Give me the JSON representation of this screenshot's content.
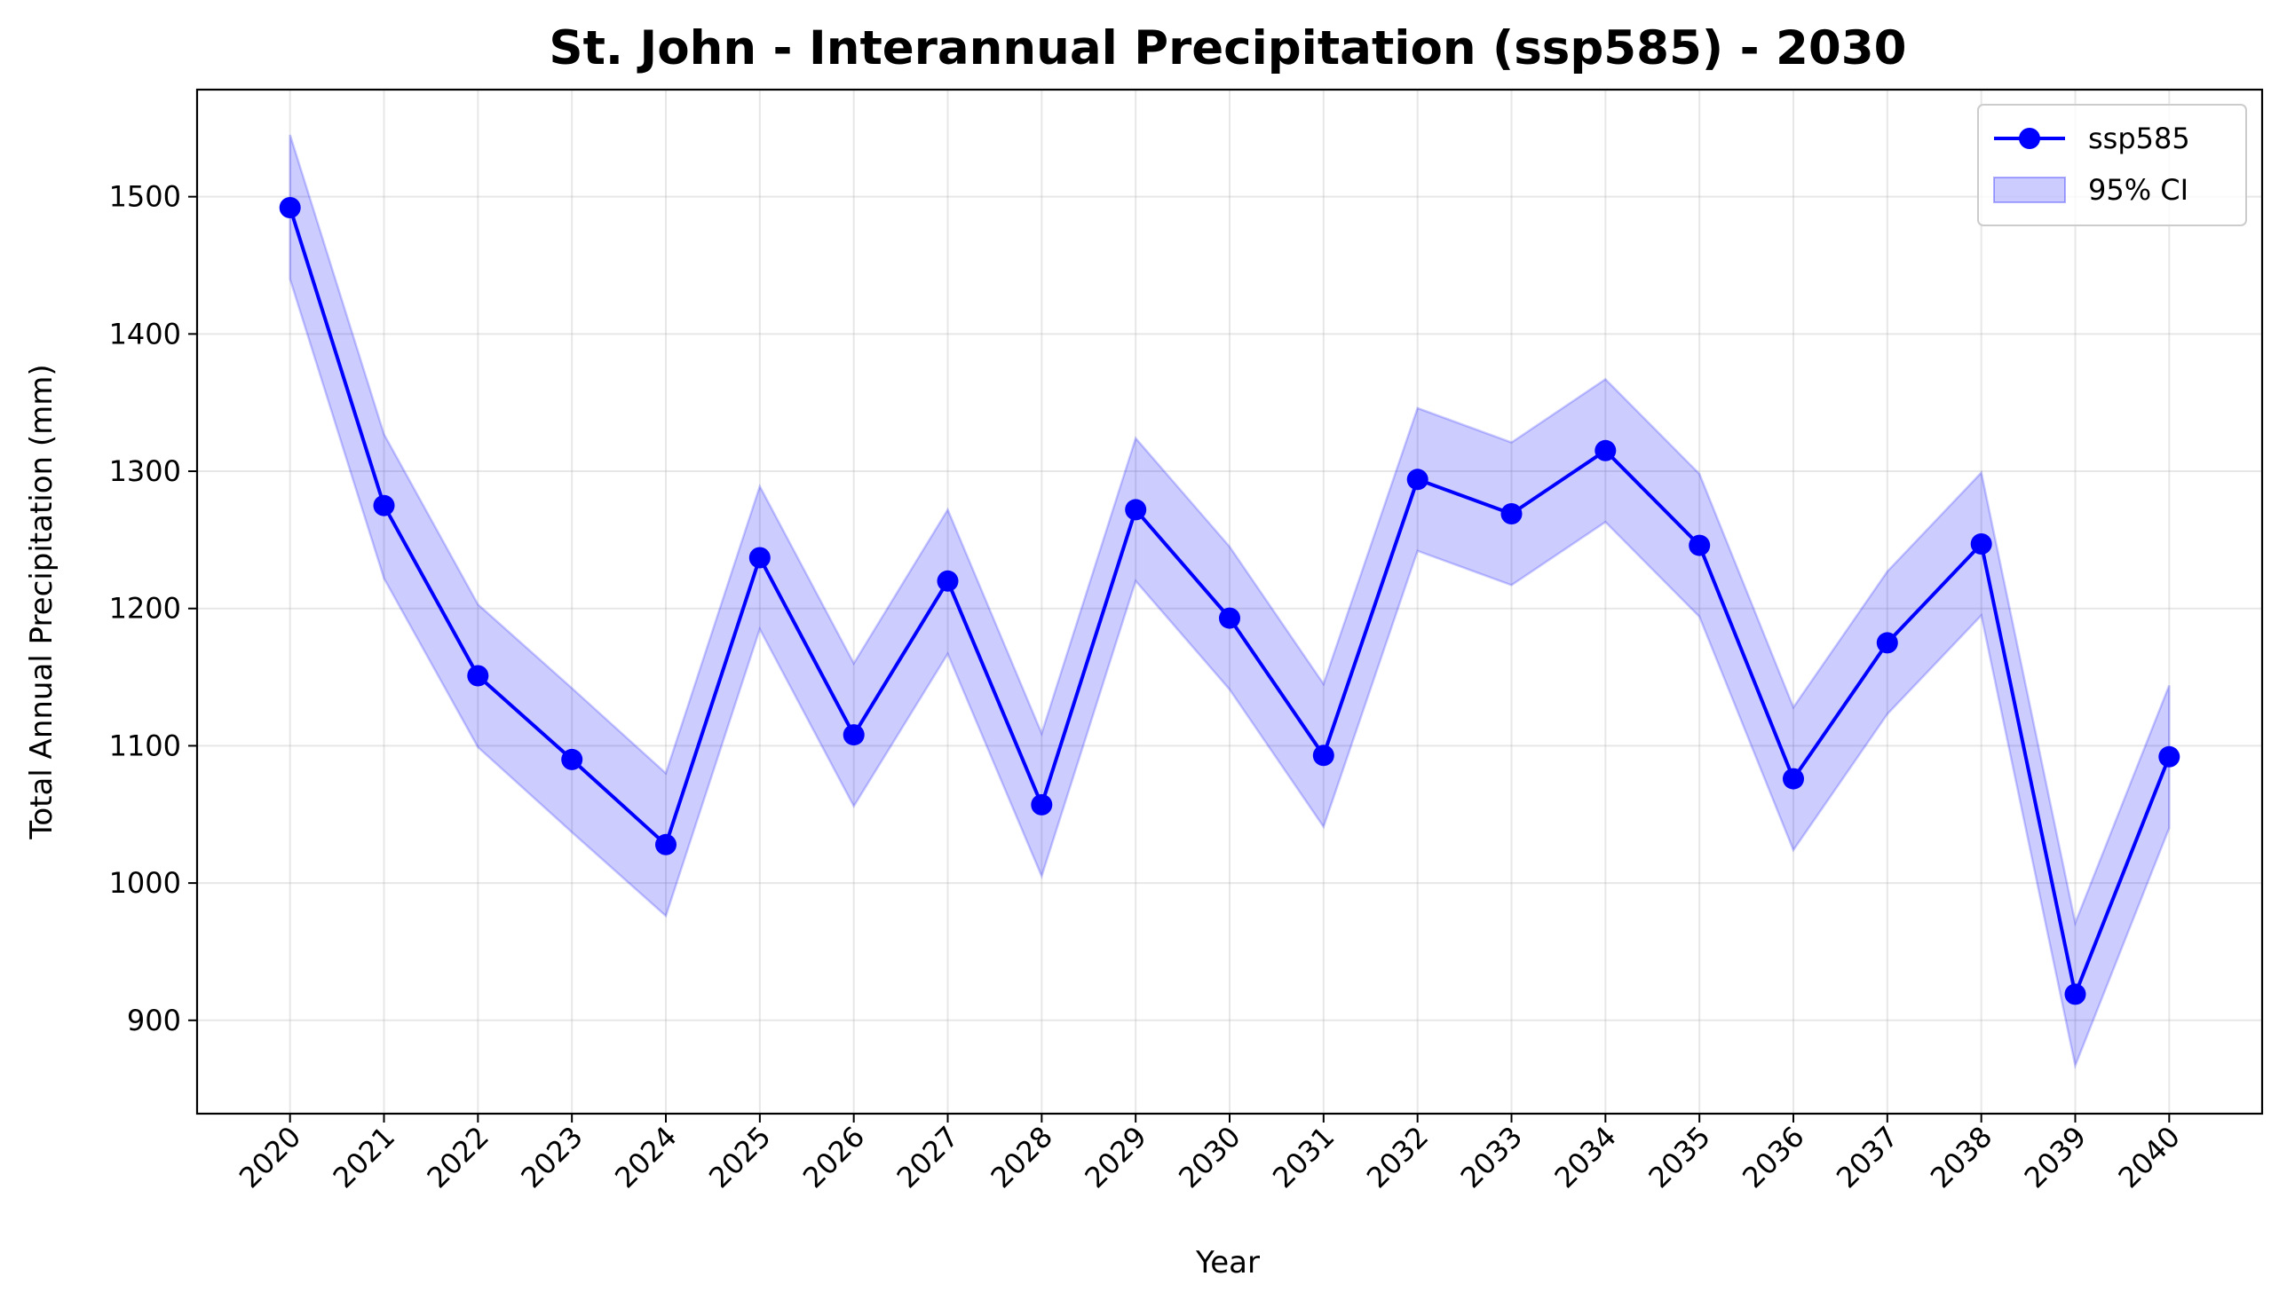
{
  "chart_data": {
    "type": "line",
    "title": "St. John - Interannual Precipitation (ssp585) - 2030",
    "xlabel": "Year",
    "ylabel": "Total Annual Precipitation (mm)",
    "categories": [
      "2020",
      "2021",
      "2022",
      "2023",
      "2024",
      "2025",
      "2026",
      "2027",
      "2028",
      "2029",
      "2030",
      "2031",
      "2032",
      "2033",
      "2034",
      "2035",
      "2036",
      "2037",
      "2038",
      "2039",
      "2040"
    ],
    "series": [
      {
        "name": "ssp585",
        "color": "#0000ff",
        "values": [
          1492,
          1275,
          1151,
          1090,
          1028,
          1237,
          1108,
          1220,
          1057,
          1272,
          1193,
          1093,
          1294,
          1269,
          1315,
          1246,
          1076,
          1175,
          1247,
          919,
          1092
        ]
      }
    ],
    "ci": {
      "name": "95% CI",
      "color": "#0000ff",
      "lower": [
        1440,
        1222,
        1099,
        1037,
        976,
        1185,
        1056,
        1167,
        1005,
        1220,
        1141,
        1041,
        1242,
        1217,
        1263,
        1194,
        1024,
        1123,
        1195,
        867,
        1040
      ],
      "upper": [
        1545,
        1327,
        1203,
        1142,
        1080,
        1289,
        1160,
        1272,
        1109,
        1324,
        1245,
        1145,
        1346,
        1321,
        1367,
        1298,
        1128,
        1227,
        1299,
        971,
        1144
      ]
    },
    "yticks": [
      900,
      1000,
      1100,
      1200,
      1300,
      1400,
      1500
    ],
    "ylim": [
      832,
      1578
    ],
    "grid": true,
    "legend_position": "top-right"
  }
}
